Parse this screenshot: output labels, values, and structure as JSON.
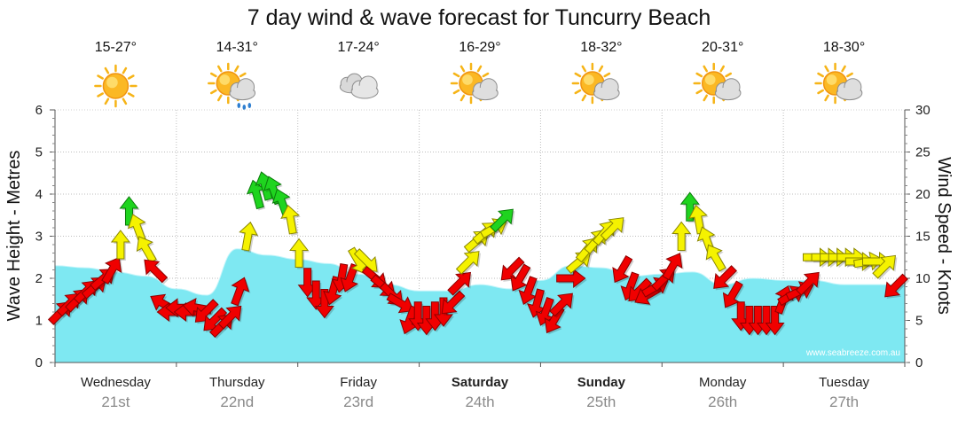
{
  "chart_data": {
    "type": "area",
    "title": "7 day wind & wave forecast for Tuncurry Beach",
    "ylabel_left": "Wave Height - Metres",
    "ylabel_right": "Wind Speed - Knots",
    "ylim_left": [
      0,
      6
    ],
    "ylim_right": [
      0,
      30
    ],
    "yticks_left": [
      "0",
      "1",
      "2",
      "3",
      "4",
      "5",
      "6"
    ],
    "yticks_right": [
      "0",
      "5",
      "10",
      "15",
      "20",
      "25",
      "30"
    ],
    "grid": true,
    "watermark": "www.seabreeze.com.au",
    "days": [
      {
        "name": "Wednesday",
        "date": "21st",
        "temp": "15-27°",
        "weather": "sunny",
        "bold": false
      },
      {
        "name": "Thursday",
        "date": "22nd",
        "temp": "14-31°",
        "weather": "sun-cloud-rain",
        "bold": false
      },
      {
        "name": "Friday",
        "date": "23rd",
        "temp": "17-24°",
        "weather": "cloudy",
        "bold": false
      },
      {
        "name": "Saturday",
        "date": "24th",
        "temp": "16-29°",
        "weather": "partly-cloudy",
        "bold": true
      },
      {
        "name": "Sunday",
        "date": "25th",
        "temp": "18-32°",
        "weather": "partly-cloudy",
        "bold": true
      },
      {
        "name": "Monday",
        "date": "26th",
        "temp": "20-31°",
        "weather": "partly-cloudy",
        "bold": false
      },
      {
        "name": "Tuesday",
        "date": "27th",
        "temp": "18-30°",
        "weather": "partly-cloudy",
        "bold": false
      }
    ],
    "wave_series": {
      "name": "Wave Height",
      "color": "#7ee8f2",
      "x_day": [
        0,
        0.25,
        0.5,
        0.75,
        1,
        1.25,
        1.5,
        1.75,
        2,
        2.25,
        2.5,
        2.75,
        3,
        3.25,
        3.5,
        3.75,
        4,
        4.25,
        4.5,
        4.75,
        5,
        5.25,
        5.5,
        5.75,
        6,
        6.25,
        6.5,
        6.75,
        7
      ],
      "values": [
        2.3,
        2.25,
        2.15,
        2.05,
        1.75,
        1.6,
        2.7,
        2.55,
        2.45,
        2.35,
        2.1,
        1.85,
        1.7,
        1.7,
        1.85,
        1.75,
        1.95,
        2.3,
        2.25,
        2.05,
        2.1,
        2.15,
        1.85,
        2.0,
        1.95,
        1.95,
        1.85,
        1.85,
        1.85
      ]
    },
    "wind_series": {
      "name": "Wind Speed",
      "unit": "knots",
      "color_legend": {
        "green": "#1fd41f",
        "yellow": "#f5f200",
        "red": "#f00000"
      },
      "points": [
        {
          "x": 0.05,
          "kn": 6,
          "dir": 225,
          "c": "red"
        },
        {
          "x": 0.12,
          "kn": 7,
          "dir": 225,
          "c": "red"
        },
        {
          "x": 0.19,
          "kn": 7.5,
          "dir": 225,
          "c": "red"
        },
        {
          "x": 0.26,
          "kn": 8.5,
          "dir": 225,
          "c": "red"
        },
        {
          "x": 0.33,
          "kn": 9,
          "dir": 230,
          "c": "red"
        },
        {
          "x": 0.4,
          "kn": 10,
          "dir": 230,
          "c": "red"
        },
        {
          "x": 0.47,
          "kn": 11,
          "dir": 210,
          "c": "red"
        },
        {
          "x": 0.54,
          "kn": 14,
          "dir": 180,
          "c": "yellow"
        },
        {
          "x": 0.61,
          "kn": 18,
          "dir": 180,
          "c": "green"
        },
        {
          "x": 0.68,
          "kn": 16,
          "dir": 160,
          "c": "yellow"
        },
        {
          "x": 0.75,
          "kn": 13.5,
          "dir": 150,
          "c": "yellow"
        },
        {
          "x": 0.82,
          "kn": 11,
          "dir": 135,
          "c": "red"
        },
        {
          "x": 0.89,
          "kn": 7,
          "dir": 120,
          "c": "red"
        },
        {
          "x": 0.96,
          "kn": 6,
          "dir": 90,
          "c": "red"
        },
        {
          "x": 1.03,
          "kn": 6.5,
          "dir": 90,
          "c": "red"
        },
        {
          "x": 1.1,
          "kn": 6,
          "dir": 90,
          "c": "red"
        },
        {
          "x": 1.17,
          "kn": 6.5,
          "dir": 100,
          "c": "red"
        },
        {
          "x": 1.24,
          "kn": 6,
          "dir": 45,
          "c": "red"
        },
        {
          "x": 1.31,
          "kn": 5,
          "dir": 45,
          "c": "red"
        },
        {
          "x": 1.38,
          "kn": 4.5,
          "dir": 225,
          "c": "red"
        },
        {
          "x": 1.45,
          "kn": 5.5,
          "dir": 225,
          "c": "red"
        },
        {
          "x": 1.52,
          "kn": 8.5,
          "dir": 200,
          "c": "red"
        },
        {
          "x": 1.59,
          "kn": 15,
          "dir": 190,
          "c": "yellow"
        },
        {
          "x": 1.66,
          "kn": 20,
          "dir": 165,
          "c": "green"
        },
        {
          "x": 1.73,
          "kn": 21,
          "dir": 165,
          "c": "green"
        },
        {
          "x": 1.8,
          "kn": 20.5,
          "dir": 160,
          "c": "green"
        },
        {
          "x": 1.87,
          "kn": 19,
          "dir": 160,
          "c": "green"
        },
        {
          "x": 1.94,
          "kn": 17,
          "dir": 170,
          "c": "yellow"
        },
        {
          "x": 2.01,
          "kn": 13,
          "dir": 180,
          "c": "yellow"
        },
        {
          "x": 2.08,
          "kn": 9.5,
          "dir": 0,
          "c": "red"
        },
        {
          "x": 2.15,
          "kn": 8,
          "dir": 0,
          "c": "red"
        },
        {
          "x": 2.22,
          "kn": 7,
          "dir": 0,
          "c": "red"
        },
        {
          "x": 2.29,
          "kn": 8.5,
          "dir": 15,
          "c": "red"
        },
        {
          "x": 2.36,
          "kn": 10,
          "dir": 10,
          "c": "red"
        },
        {
          "x": 2.43,
          "kn": 10,
          "dir": 20,
          "c": "red"
        },
        {
          "x": 2.5,
          "kn": 12,
          "dir": 330,
          "c": "yellow"
        },
        {
          "x": 2.57,
          "kn": 12,
          "dir": 315,
          "c": "yellow"
        },
        {
          "x": 2.64,
          "kn": 10,
          "dir": 310,
          "c": "red"
        },
        {
          "x": 2.71,
          "kn": 9,
          "dir": 310,
          "c": "red"
        },
        {
          "x": 2.78,
          "kn": 8,
          "dir": 315,
          "c": "red"
        },
        {
          "x": 2.85,
          "kn": 7,
          "dir": 300,
          "c": "red"
        },
        {
          "x": 2.92,
          "kn": 5,
          "dir": 20,
          "c": "red"
        },
        {
          "x": 2.99,
          "kn": 5.5,
          "dir": 0,
          "c": "red"
        },
        {
          "x": 3.06,
          "kn": 5,
          "dir": 0,
          "c": "red"
        },
        {
          "x": 3.13,
          "kn": 5.5,
          "dir": 0,
          "c": "red"
        },
        {
          "x": 3.2,
          "kn": 6,
          "dir": 0,
          "c": "red"
        },
        {
          "x": 3.27,
          "kn": 7,
          "dir": 45,
          "c": "red"
        },
        {
          "x": 3.34,
          "kn": 9.5,
          "dir": 225,
          "c": "red"
        },
        {
          "x": 3.41,
          "kn": 12,
          "dir": 225,
          "c": "yellow"
        },
        {
          "x": 3.48,
          "kn": 14.5,
          "dir": 230,
          "c": "yellow"
        },
        {
          "x": 3.55,
          "kn": 15.5,
          "dir": 230,
          "c": "yellow"
        },
        {
          "x": 3.62,
          "kn": 16,
          "dir": 240,
          "c": "yellow"
        },
        {
          "x": 3.69,
          "kn": 17,
          "dir": 225,
          "c": "green"
        },
        {
          "x": 3.76,
          "kn": 11,
          "dir": 45,
          "c": "red"
        },
        {
          "x": 3.83,
          "kn": 10,
          "dir": 30,
          "c": "red"
        },
        {
          "x": 3.9,
          "kn": 8.5,
          "dir": 20,
          "c": "red"
        },
        {
          "x": 3.97,
          "kn": 7,
          "dir": 15,
          "c": "red"
        },
        {
          "x": 4.04,
          "kn": 6,
          "dir": 20,
          "c": "red"
        },
        {
          "x": 4.11,
          "kn": 5,
          "dir": 30,
          "c": "red"
        },
        {
          "x": 4.18,
          "kn": 7,
          "dir": 225,
          "c": "red"
        },
        {
          "x": 4.25,
          "kn": 10,
          "dir": 270,
          "c": "red"
        },
        {
          "x": 4.32,
          "kn": 12,
          "dir": 230,
          "c": "yellow"
        },
        {
          "x": 4.39,
          "kn": 13.5,
          "dir": 220,
          "c": "yellow"
        },
        {
          "x": 4.46,
          "kn": 14.5,
          "dir": 220,
          "c": "yellow"
        },
        {
          "x": 4.53,
          "kn": 15.5,
          "dir": 220,
          "c": "yellow"
        },
        {
          "x": 4.6,
          "kn": 16,
          "dir": 225,
          "c": "yellow"
        },
        {
          "x": 4.67,
          "kn": 11,
          "dir": 30,
          "c": "red"
        },
        {
          "x": 4.74,
          "kn": 9,
          "dir": 20,
          "c": "red"
        },
        {
          "x": 4.81,
          "kn": 8.5,
          "dir": 45,
          "c": "red"
        },
        {
          "x": 4.88,
          "kn": 8,
          "dir": 60,
          "c": "red"
        },
        {
          "x": 4.95,
          "kn": 9,
          "dir": 240,
          "c": "red"
        },
        {
          "x": 5.02,
          "kn": 10,
          "dir": 225,
          "c": "red"
        },
        {
          "x": 5.09,
          "kn": 11.5,
          "dir": 210,
          "c": "red"
        },
        {
          "x": 5.16,
          "kn": 15,
          "dir": 180,
          "c": "yellow"
        },
        {
          "x": 5.23,
          "kn": 18.5,
          "dir": 180,
          "c": "green"
        },
        {
          "x": 5.3,
          "kn": 17,
          "dir": 170,
          "c": "yellow"
        },
        {
          "x": 5.37,
          "kn": 14.5,
          "dir": 160,
          "c": "yellow"
        },
        {
          "x": 5.44,
          "kn": 12.5,
          "dir": 150,
          "c": "yellow"
        },
        {
          "x": 5.51,
          "kn": 10,
          "dir": 45,
          "c": "red"
        },
        {
          "x": 5.58,
          "kn": 8,
          "dir": 30,
          "c": "red"
        },
        {
          "x": 5.65,
          "kn": 5.5,
          "dir": 0,
          "c": "red"
        },
        {
          "x": 5.72,
          "kn": 5,
          "dir": 0,
          "c": "red"
        },
        {
          "x": 5.79,
          "kn": 5,
          "dir": 0,
          "c": "red"
        },
        {
          "x": 5.86,
          "kn": 5,
          "dir": 0,
          "c": "red"
        },
        {
          "x": 5.93,
          "kn": 5,
          "dir": 0,
          "c": "red"
        },
        {
          "x": 6.0,
          "kn": 7.5,
          "dir": 200,
          "c": "red"
        },
        {
          "x": 6.07,
          "kn": 8,
          "dir": 240,
          "c": "red"
        },
        {
          "x": 6.14,
          "kn": 8.5,
          "dir": 245,
          "c": "red"
        },
        {
          "x": 6.21,
          "kn": 9.5,
          "dir": 225,
          "c": "red"
        },
        {
          "x": 6.28,
          "kn": 12.5,
          "dir": 270,
          "c": "yellow"
        },
        {
          "x": 6.35,
          "kn": 12.5,
          "dir": 270,
          "c": "yellow"
        },
        {
          "x": 6.42,
          "kn": 12.5,
          "dir": 270,
          "c": "yellow"
        },
        {
          "x": 6.49,
          "kn": 12.5,
          "dir": 270,
          "c": "yellow"
        },
        {
          "x": 6.56,
          "kn": 12.5,
          "dir": 270,
          "c": "yellow"
        },
        {
          "x": 6.63,
          "kn": 12,
          "dir": 270,
          "c": "yellow"
        },
        {
          "x": 6.7,
          "kn": 12,
          "dir": 260,
          "c": "yellow"
        },
        {
          "x": 6.77,
          "kn": 12,
          "dir": 270,
          "c": "yellow"
        },
        {
          "x": 6.84,
          "kn": 11.5,
          "dir": 225,
          "c": "yellow"
        },
        {
          "x": 6.92,
          "kn": 9,
          "dir": 45,
          "c": "red"
        }
      ]
    }
  }
}
